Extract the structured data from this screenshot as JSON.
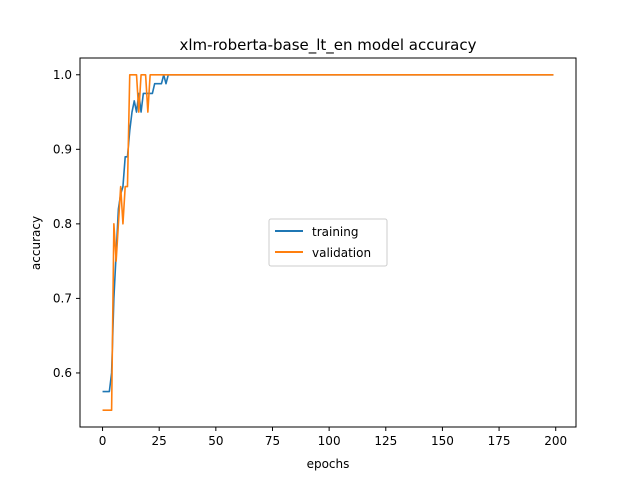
{
  "chart_data": {
    "type": "line",
    "title": "xlm-roberta-base_lt_en model accuracy",
    "xlabel": "epochs",
    "ylabel": "accuracy",
    "xlim": [
      -9.95,
      208.95
    ],
    "ylim": [
      0.5275,
      1.0225
    ],
    "xticks": [
      0,
      25,
      50,
      75,
      100,
      125,
      150,
      175,
      200
    ],
    "yticks": [
      0.6,
      0.7,
      0.8,
      0.9,
      1.0
    ],
    "ytick_labels": [
      "0.6",
      "0.7",
      "0.8",
      "0.9",
      "1.0"
    ],
    "grid": false,
    "legend": "center-right",
    "series": [
      {
        "name": "training",
        "color": "#1f77b4",
        "points": [
          [
            0,
            0.575
          ],
          [
            1,
            0.575
          ],
          [
            2,
            0.575
          ],
          [
            3,
            0.575
          ],
          [
            4,
            0.6
          ],
          [
            5,
            0.7
          ],
          [
            6,
            0.76
          ],
          [
            7,
            0.82
          ],
          [
            8,
            0.84
          ],
          [
            9,
            0.85
          ],
          [
            10,
            0.89
          ],
          [
            11,
            0.89
          ],
          [
            12,
            0.925
          ],
          [
            13,
            0.95
          ],
          [
            14,
            0.965
          ],
          [
            15,
            0.95
          ],
          [
            16,
            0.975
          ],
          [
            17,
            0.95
          ],
          [
            18,
            0.975
          ],
          [
            19,
            0.975
          ],
          [
            20,
            0.975
          ],
          [
            21,
            0.975
          ],
          [
            22,
            0.975
          ],
          [
            23,
            0.988
          ],
          [
            24,
            0.988
          ],
          [
            25,
            0.988
          ],
          [
            26,
            0.988
          ],
          [
            27,
            1.0
          ],
          [
            28,
            0.988
          ],
          [
            29,
            1.0
          ],
          [
            199,
            1.0
          ]
        ]
      },
      {
        "name": "validation",
        "color": "#ff7f0e",
        "points": [
          [
            0,
            0.55
          ],
          [
            1,
            0.55
          ],
          [
            2,
            0.55
          ],
          [
            3,
            0.55
          ],
          [
            4,
            0.55
          ],
          [
            5,
            0.8
          ],
          [
            6,
            0.75
          ],
          [
            7,
            0.8
          ],
          [
            8,
            0.85
          ],
          [
            9,
            0.8
          ],
          [
            10,
            0.85
          ],
          [
            11,
            0.85
          ],
          [
            12,
            1.0
          ],
          [
            13,
            1.0
          ],
          [
            14,
            1.0
          ],
          [
            15,
            1.0
          ],
          [
            16,
            0.95
          ],
          [
            17,
            1.0
          ],
          [
            18,
            1.0
          ],
          [
            19,
            1.0
          ],
          [
            20,
            0.95
          ],
          [
            21,
            1.0
          ],
          [
            199,
            1.0
          ]
        ]
      }
    ]
  }
}
